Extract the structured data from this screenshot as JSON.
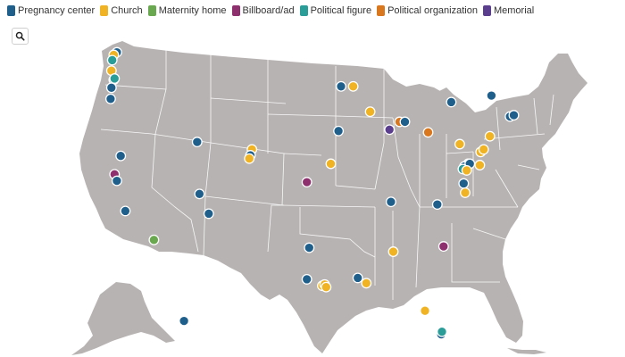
{
  "legend": [
    {
      "label": "Pregnancy center",
      "color": "#1f5f8b"
    },
    {
      "label": "Church",
      "color": "#f0b323"
    },
    {
      "label": "Maternity home",
      "color": "#6aa84f"
    },
    {
      "label": "Billboard/ad",
      "color": "#8e2f6e"
    },
    {
      "label": "Political figure",
      "color": "#2a9d99"
    },
    {
      "label": "Political organization",
      "color": "#d9771e"
    },
    {
      "label": "Memorial",
      "color": "#5b3e8e"
    }
  ],
  "search": {
    "icon": "search-icon"
  },
  "map": {
    "land_color": "#b8b3b3",
    "border_color": "#ffffff"
  },
  "incidents": [
    {
      "type": "Pregnancy center",
      "lon": -122.3,
      "lat": 47.6
    },
    {
      "type": "Church",
      "lon": -122.7,
      "lat": 47.4
    },
    {
      "type": "Political figure",
      "lon": -122.9,
      "lat": 47.0
    },
    {
      "type": "Church",
      "lon": -123.0,
      "lat": 46.2
    },
    {
      "type": "Pregnancy center",
      "lon": -122.7,
      "lat": 45.5
    },
    {
      "type": "Political figure",
      "lon": -122.6,
      "lat": 45.6
    },
    {
      "type": "Pregnancy center",
      "lon": -123.0,
      "lat": 44.9
    },
    {
      "type": "Pregnancy center",
      "lon": -123.1,
      "lat": 44.05
    },
    {
      "type": "Pregnancy center",
      "lon": -121.8,
      "lat": 39.7
    },
    {
      "type": "Billboard/ad",
      "lon": -122.6,
      "lat": 38.3
    },
    {
      "type": "Pregnancy center",
      "lon": -122.3,
      "lat": 37.8
    },
    {
      "type": "Pregnancy center",
      "lon": -121.2,
      "lat": 35.5
    },
    {
      "type": "Maternity home",
      "lon": -117.5,
      "lat": 33.3
    },
    {
      "type": "Pregnancy center",
      "lon": -111.9,
      "lat": 40.76
    },
    {
      "type": "Pregnancy center",
      "lon": -111.6,
      "lat": 36.8
    },
    {
      "type": "Pregnancy center",
      "lon": -110.4,
      "lat": 35.3
    },
    {
      "type": "Church",
      "lon": -104.8,
      "lat": 40.2
    },
    {
      "type": "Pregnancy center",
      "lon": -105.0,
      "lat": 39.75
    },
    {
      "type": "Church",
      "lon": -105.15,
      "lat": 39.5
    },
    {
      "type": "Billboard/ad",
      "lon": -97.7,
      "lat": 37.7
    },
    {
      "type": "Church",
      "lon": -94.6,
      "lat": 39.1
    },
    {
      "type": "Pregnancy center",
      "lon": -93.27,
      "lat": 45.0
    },
    {
      "type": "Church",
      "lon": -91.7,
      "lat": 45.0
    },
    {
      "type": "Pregnancy center",
      "lon": -93.6,
      "lat": 41.6
    },
    {
      "type": "Church",
      "lon": -89.5,
      "lat": 43.07
    },
    {
      "type": "Memorial",
      "lon": -87.0,
      "lat": 41.7
    },
    {
      "type": "Political organization",
      "lon": -85.7,
      "lat": 42.3
    },
    {
      "type": "Pregnancy center",
      "lon": -85.0,
      "lat": 42.3
    },
    {
      "type": "Political organization",
      "lon": -82.0,
      "lat": 41.5
    },
    {
      "type": "Pregnancy center",
      "lon": -79.0,
      "lat": 43.8
    },
    {
      "type": "Pregnancy center",
      "lon": -73.8,
      "lat": 44.3
    },
    {
      "type": "Pregnancy center",
      "lon": -71.4,
      "lat": 42.7
    },
    {
      "type": "Pregnancy center",
      "lon": -70.9,
      "lat": 42.8
    },
    {
      "type": "Church",
      "lon": -74.0,
      "lat": 41.2
    },
    {
      "type": "Church",
      "lon": -77.9,
      "lat": 40.6
    },
    {
      "type": "Church",
      "lon": -75.2,
      "lat": 40.0
    },
    {
      "type": "Church",
      "lon": -74.8,
      "lat": 40.2
    },
    {
      "type": "Pregnancy center",
      "lon": -76.8,
      "lat": 39.1
    },
    {
      "type": "Pregnancy center",
      "lon": -77.3,
      "lat": 38.9
    },
    {
      "type": "Pregnancy center",
      "lon": -76.6,
      "lat": 39.1
    },
    {
      "type": "Political figure",
      "lon": -77.5,
      "lat": 38.7
    },
    {
      "type": "Church",
      "lon": -77.0,
      "lat": 38.6
    },
    {
      "type": "Church",
      "lon": -75.3,
      "lat": 39.0
    },
    {
      "type": "Pregnancy center",
      "lon": -77.4,
      "lat": 37.6
    },
    {
      "type": "Church",
      "lon": -77.2,
      "lat": 36.9
    },
    {
      "type": "Pregnancy center",
      "lon": -80.8,
      "lat": 36.0
    },
    {
      "type": "Pregnancy center",
      "lon": -86.8,
      "lat": 36.2
    },
    {
      "type": "Billboard/ad",
      "lon": -80.0,
      "lat": 32.8
    },
    {
      "type": "Church",
      "lon": -86.5,
      "lat": 32.4
    },
    {
      "type": "Pregnancy center",
      "lon": -97.4,
      "lat": 32.7
    },
    {
      "type": "Pregnancy center",
      "lon": -97.7,
      "lat": 30.3
    },
    {
      "type": "Church",
      "lon": -95.7,
      "lat": 29.8
    },
    {
      "type": "Church",
      "lon": -95.4,
      "lat": 29.9
    },
    {
      "type": "Church",
      "lon": -95.2,
      "lat": 29.7
    },
    {
      "type": "Pregnancy center",
      "lon": -91.1,
      "lat": 30.4
    },
    {
      "type": "Church",
      "lon": -90.0,
      "lat": 30.0
    },
    {
      "type": "Church",
      "lon": -82.4,
      "lat": 27.9
    },
    {
      "type": "Pregnancy center",
      "lon": -80.3,
      "lat": 26.1
    },
    {
      "type": "Political figure",
      "lon": -80.2,
      "lat": 26.3
    },
    {
      "type": "Pregnancy center",
      "lon": -149.9,
      "lat": 61.2
    }
  ]
}
